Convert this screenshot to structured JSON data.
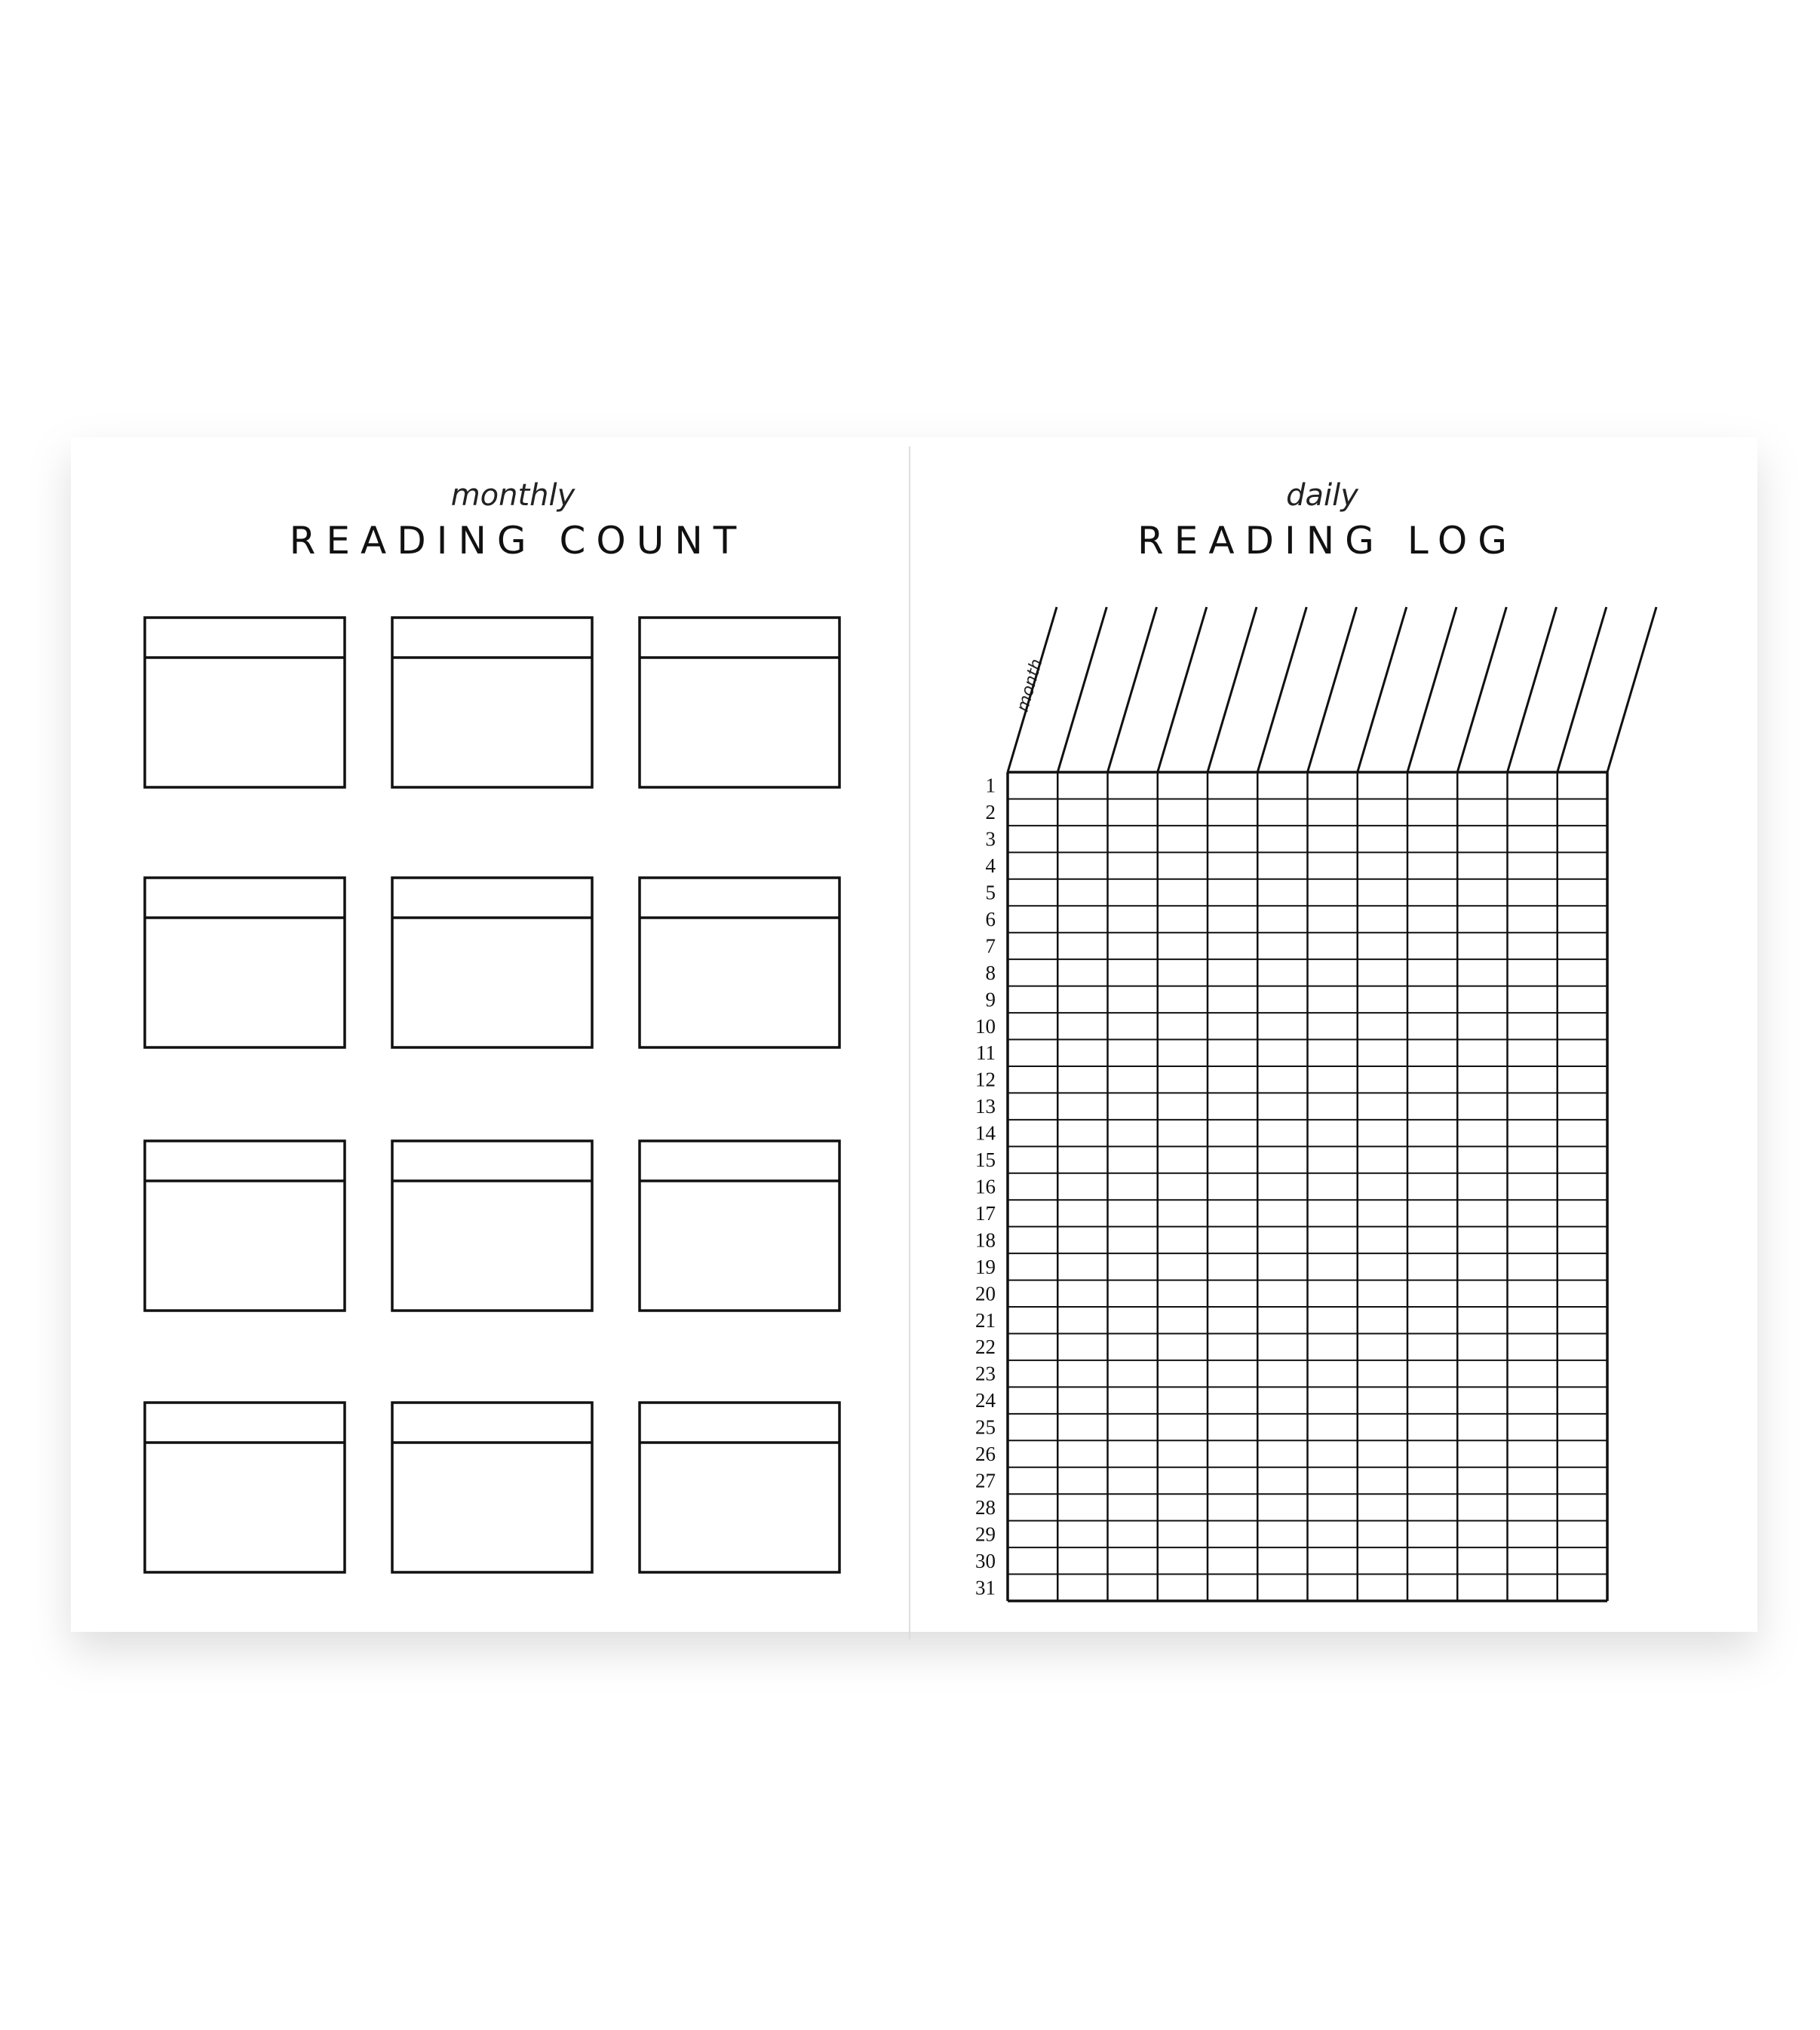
{
  "left_page": {
    "subtitle": "monthly",
    "title": "READING COUNT"
  },
  "right_page": {
    "subtitle": "daily",
    "title": "READING LOG",
    "column_label": "month",
    "days": [
      "1",
      "2",
      "3",
      "4",
      "5",
      "6",
      "7",
      "8",
      "9",
      "10",
      "11",
      "12",
      "13",
      "14",
      "15",
      "16",
      "17",
      "18",
      "19",
      "20",
      "21",
      "22",
      "23",
      "24",
      "25",
      "26",
      "27",
      "28",
      "29",
      "30",
      "31"
    ]
  }
}
